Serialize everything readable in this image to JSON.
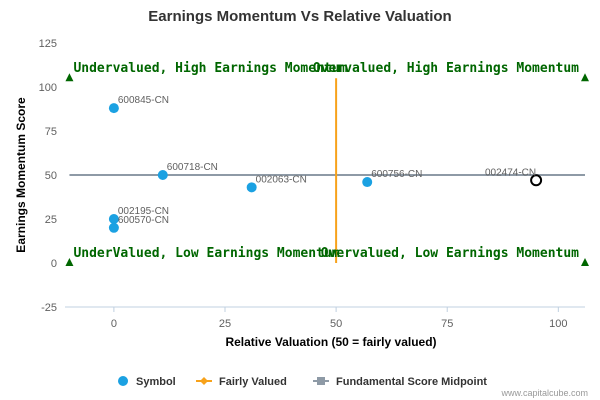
{
  "chart_data": {
    "type": "scatter",
    "title": "Earnings Momentum Vs Relative Valuation",
    "xlabel": "Relative Valuation (50 = fairly valued)",
    "ylabel": "Earnings Momentum Score",
    "xlim": [
      -11,
      106
    ],
    "ylim": [
      -25,
      125
    ],
    "xticks": [
      0,
      25,
      50,
      75,
      100
    ],
    "yticks": [
      -25,
      0,
      25,
      50,
      75,
      100,
      125
    ],
    "grid": false,
    "legend_position": "bottom",
    "series": [
      {
        "name": "Symbol",
        "color": "#1ba1e2",
        "points": [
          {
            "label": "600845-CN",
            "x": 0,
            "y": 88
          },
          {
            "label": "600718-CN",
            "x": 11,
            "y": 50
          },
          {
            "label": "002063-CN",
            "x": 31,
            "y": 43
          },
          {
            "label": "600756-CN",
            "x": 57,
            "y": 46
          },
          {
            "label": "002195-CN",
            "x": 0,
            "y": 25
          },
          {
            "label": "600570-CN",
            "x": 0,
            "y": 20
          },
          {
            "label": "002474-CN",
            "x": 95,
            "y": 47,
            "highlight": true
          }
        ]
      },
      {
        "name": "Fairly Valued",
        "color": "#f7a21b",
        "x": 50,
        "y_range": [
          0,
          105
        ]
      },
      {
        "name": "Fundamental Score Midpoint",
        "color": "#8e9aa6",
        "y": 50,
        "x_range": [
          -10,
          106
        ]
      }
    ],
    "quadrant_labels": [
      {
        "text": "Undervalued, High Earnings Momentum",
        "x": -10,
        "y": 105
      },
      {
        "text": "Overvalued, High Earnings Momentum",
        "x": 106,
        "y": 105
      },
      {
        "text": "UnderValued, Low Earnings Momentum",
        "x": -10,
        "y": 0
      },
      {
        "text": "Overvalued, Low Earnings Momentum",
        "x": 106,
        "y": 0
      }
    ],
    "quadrant_marker_color": "#006600",
    "credit": "www.capitalcube.com"
  }
}
